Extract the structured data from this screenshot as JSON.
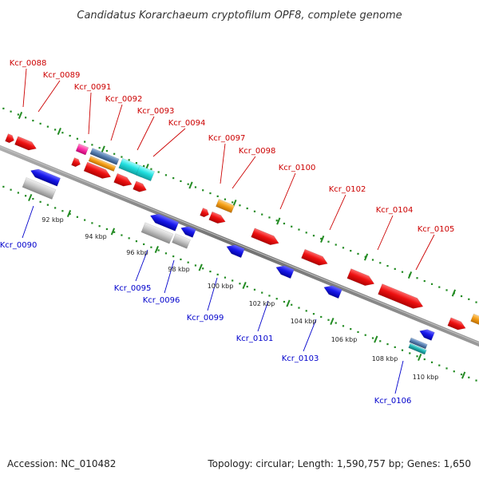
{
  "title": "Candidatus Korarchaeum cryptofilum OPF8, complete genome",
  "footer": {
    "accession": "Accession: NC_010482",
    "summary": "Topology: circular; Length: 1,590,757 bp; Genes: 1,650"
  },
  "colors": {
    "forward_label": "#cc0000",
    "reverse_label": "#0000cc",
    "backbone": "#808080",
    "tick": "#228b22",
    "red": "#ee1111",
    "blue": "#1a1aee",
    "gray": "#c8c8c8",
    "orange": "#f5a019",
    "cyan": "#22e0e0",
    "magenta": "#ff33aa",
    "steelblue": "#5a82b4",
    "teal": "#20b2b2"
  },
  "kbp_ticks": [
    "92 kbp",
    "94 kbp",
    "96 kbp",
    "98 kbp",
    "100 kbp",
    "102 kbp",
    "104 kbp",
    "106 kbp",
    "108 kbp",
    "110 kbp"
  ],
  "forward_labels": [
    "Kcr_0088",
    "Kcr_0089",
    "Kcr_0091",
    "Kcr_0092",
    "Kcr_0093",
    "Kcr_0094",
    "Kcr_0097",
    "Kcr_0098",
    "Kcr_0100",
    "Kcr_0102",
    "Kcr_0104",
    "Kcr_0105"
  ],
  "reverse_labels": [
    "Kcr_0090",
    "Kcr_0095",
    "Kcr_0096",
    "Kcr_0099",
    "Kcr_0101",
    "Kcr_0103",
    "Kcr_0106"
  ]
}
